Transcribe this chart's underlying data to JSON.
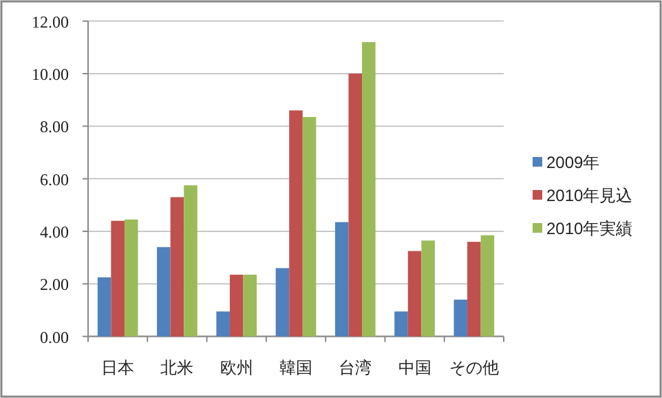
{
  "chart_data": {
    "type": "bar",
    "categories": [
      "日本",
      "北米",
      "欧州",
      "韓国",
      "台湾",
      "中国",
      "その他"
    ],
    "series": [
      {
        "name": "2009年",
        "color": "#4f81bd",
        "values": [
          2.25,
          3.4,
          0.95,
          2.6,
          4.35,
          0.95,
          1.4
        ]
      },
      {
        "name": "2010年見込",
        "color": "#c0504d",
        "values": [
          4.4,
          5.3,
          2.35,
          8.6,
          10.0,
          3.25,
          3.6
        ]
      },
      {
        "name": "2010年実績",
        "color": "#9bbb59",
        "values": [
          4.45,
          5.75,
          2.35,
          8.35,
          11.2,
          3.65,
          3.85
        ]
      }
    ],
    "ylim": [
      0,
      12
    ],
    "yticks": [
      {
        "value": 0,
        "label": "0.00"
      },
      {
        "value": 2,
        "label": "2.00"
      },
      {
        "value": 4,
        "label": "4.00"
      },
      {
        "value": 6,
        "label": "6.00"
      },
      {
        "value": 8,
        "label": "8.00"
      },
      {
        "value": 10,
        "label": "10.00"
      },
      {
        "value": 12,
        "label": "12.00"
      }
    ],
    "grid": "y",
    "legend": "right"
  }
}
